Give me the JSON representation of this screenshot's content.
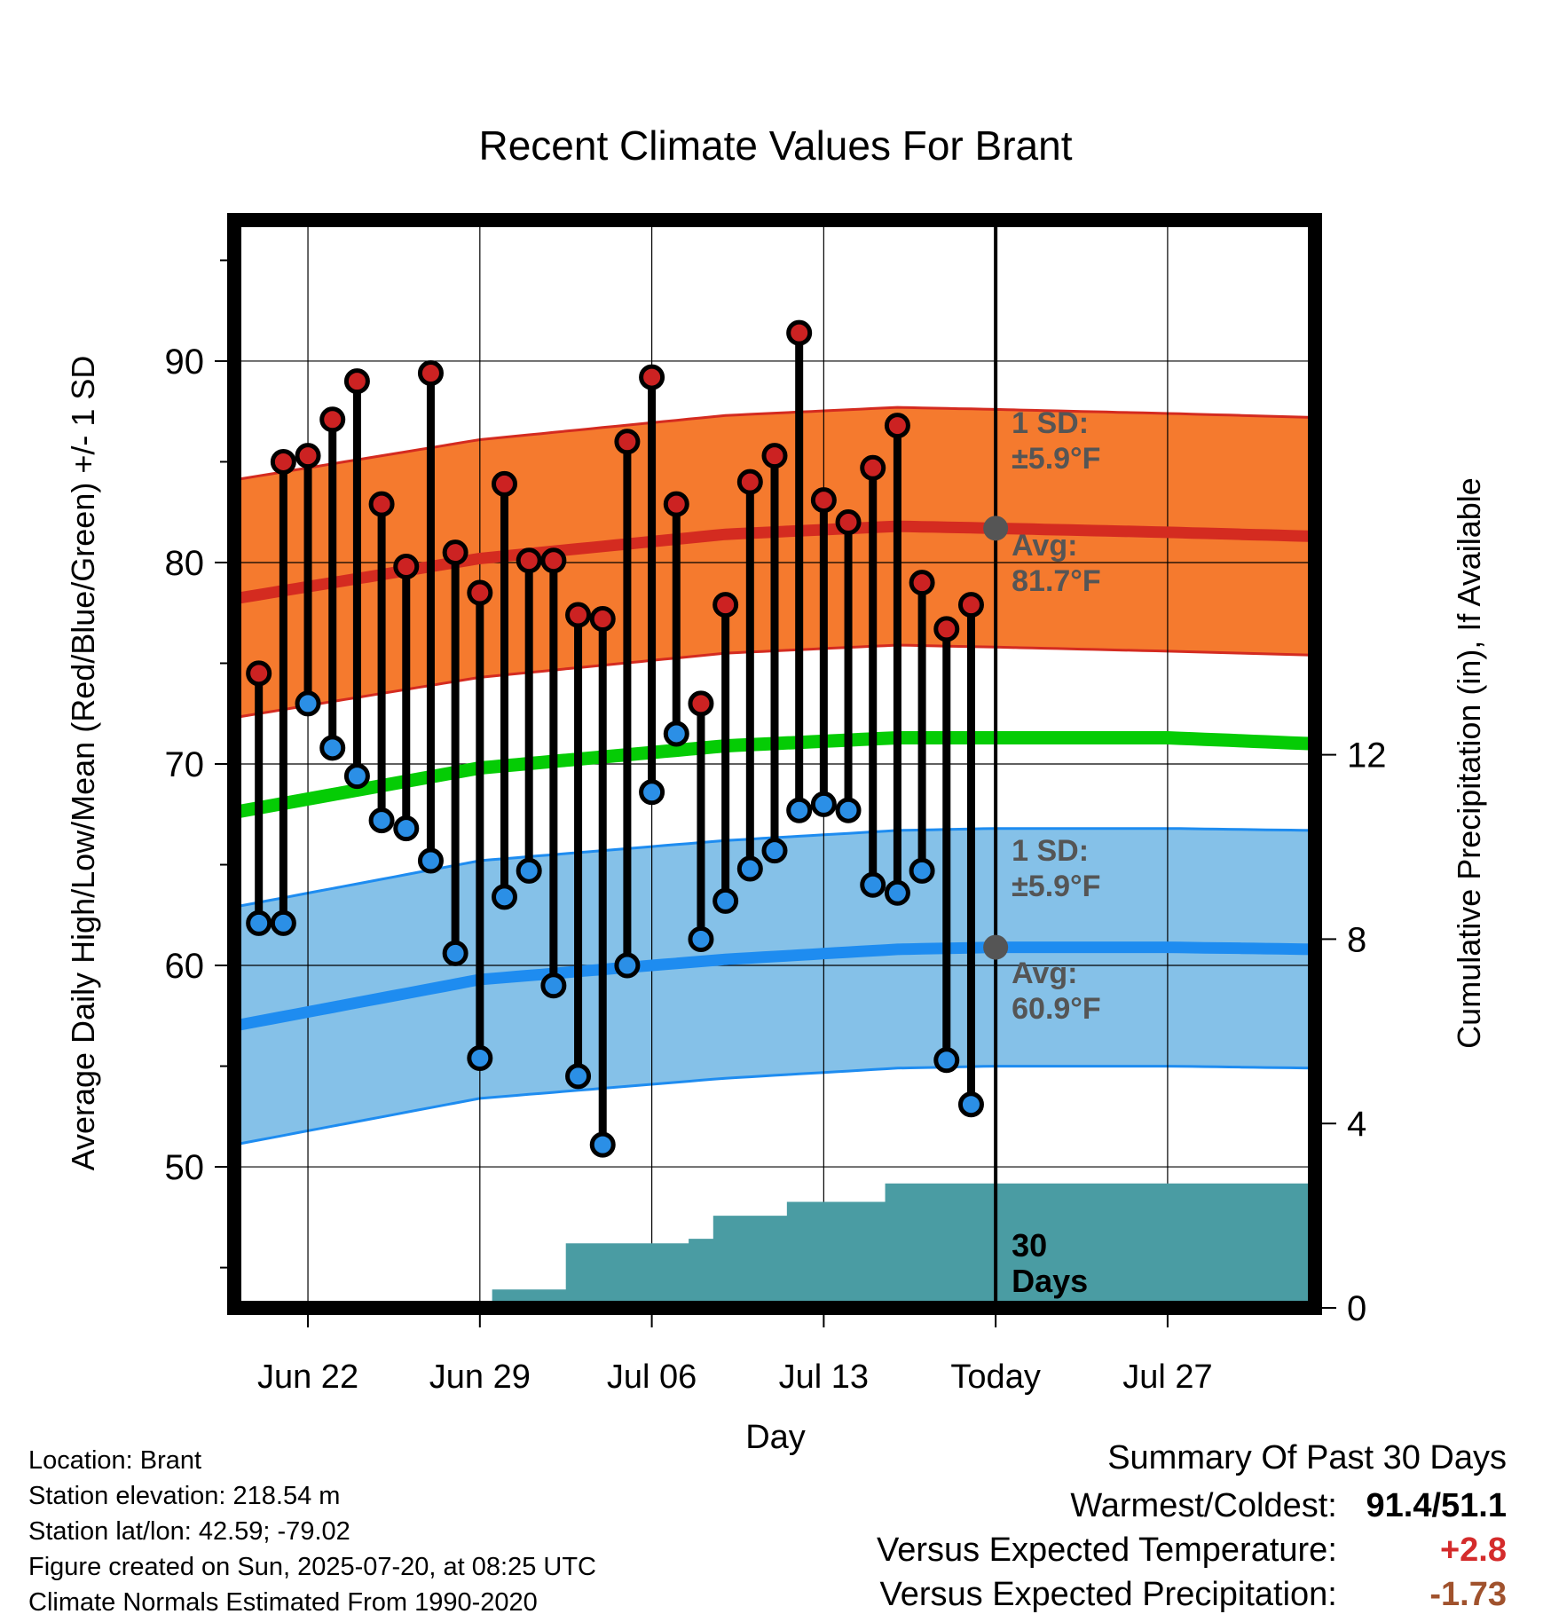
{
  "chart_data": {
    "type": "line",
    "title": "Recent Climate Values For Brant",
    "xlabel": "Day",
    "ylabel": "Average Daily High/Low/Mean (Red/Blue/Green) +/- 1 SD",
    "y2label": "Cumulative Precipitation (in), If Available",
    "ylim": [
      43,
      97
    ],
    "y2lim": [
      0,
      23.6
    ],
    "yticks": [
      50,
      60,
      70,
      80,
      90
    ],
    "y2ticks": [
      0,
      4,
      8,
      12
    ],
    "x_day_range": [
      0,
      44
    ],
    "x_ticks": [
      {
        "day": 3,
        "label": "Jun 22"
      },
      {
        "day": 10,
        "label": "Jun 29"
      },
      {
        "day": 17,
        "label": "Jul 06"
      },
      {
        "day": 24,
        "label": "Jul 13"
      },
      {
        "day": 31,
        "label": "Today"
      },
      {
        "day": 38,
        "label": "Jul 27"
      }
    ],
    "today_day": 31,
    "dates": [
      "Jun 20",
      "Jun 21",
      "Jun 22",
      "Jun 23",
      "Jun 24",
      "Jun 25",
      "Jun 26",
      "Jun 27",
      "Jun 28",
      "Jun 29",
      "Jun 30",
      "Jul 01",
      "Jul 02",
      "Jul 03",
      "Jul 04",
      "Jul 05",
      "Jul 06",
      "Jul 07",
      "Jul 08",
      "Jul 09",
      "Jul 10",
      "Jul 11",
      "Jul 12",
      "Jul 13",
      "Jul 14",
      "Jul 15",
      "Jul 16",
      "Jul 17",
      "Jul 18",
      "Jul 19"
    ],
    "highs": [
      74.5,
      85.0,
      85.3,
      87.1,
      89.0,
      82.9,
      79.8,
      89.4,
      80.5,
      78.5,
      83.9,
      80.1,
      80.1,
      77.4,
      77.2,
      86.0,
      89.2,
      82.9,
      73.0,
      77.9,
      84.0,
      85.3,
      91.4,
      83.1,
      82.0,
      84.7,
      86.8,
      79.0,
      76.7,
      77.9
    ],
    "lows": [
      62.1,
      62.1,
      73.0,
      70.8,
      69.4,
      67.2,
      66.8,
      65.2,
      60.6,
      55.4,
      63.4,
      64.7,
      59.0,
      54.5,
      51.1,
      60.0,
      68.6,
      71.5,
      61.3,
      63.2,
      64.8,
      65.7,
      67.7,
      68.0,
      67.7,
      64.0,
      63.6,
      64.7,
      55.3,
      53.1
    ],
    "normals": {
      "high_avg": [
        [
          0,
          78.2
        ],
        [
          10,
          80.2
        ],
        [
          20,
          81.4
        ],
        [
          27,
          81.8
        ],
        [
          31,
          81.7
        ],
        [
          38,
          81.5
        ],
        [
          44,
          81.3
        ]
      ],
      "low_avg": [
        [
          0,
          57.0
        ],
        [
          10,
          59.3
        ],
        [
          20,
          60.3
        ],
        [
          27,
          60.8
        ],
        [
          31,
          60.9
        ],
        [
          38,
          60.9
        ],
        [
          44,
          60.8
        ]
      ],
      "mean": [
        [
          0,
          67.6
        ],
        [
          10,
          69.8
        ],
        [
          20,
          70.9
        ],
        [
          27,
          71.3
        ],
        [
          31,
          71.3
        ],
        [
          38,
          71.3
        ],
        [
          44,
          71.0
        ]
      ],
      "sd": 5.9
    },
    "precip_cumulative": [
      0,
      0,
      0,
      0,
      0,
      0,
      0,
      0,
      0,
      0,
      0.4,
      0.4,
      0.4,
      1.4,
      1.4,
      1.4,
      1.4,
      1.4,
      1.5,
      2.0,
      2.0,
      2.0,
      2.3,
      2.3,
      2.3,
      2.3,
      2.7,
      2.7,
      2.7,
      2.7
    ],
    "annotations": {
      "high_sd": [
        "1 SD:",
        "±5.9°F"
      ],
      "high_avg": [
        "Avg:",
        "81.7°F"
      ],
      "low_sd": [
        "1 SD:",
        "±5.9°F"
      ],
      "low_avg": [
        "Avg:",
        "60.9°F"
      ],
      "days": [
        "30",
        "Days"
      ]
    },
    "colors": {
      "high_band": "#f57a2e",
      "high_line": "#d42b20",
      "low_band": "#85c1e8",
      "low_line": "#1e8cf0",
      "mean_line": "#05cc05",
      "precip": "#4a9ca3",
      "high_marker": "#cc2222",
      "low_marker": "#2b8fe6",
      "annotation": "#555555"
    }
  },
  "footer": {
    "lines": [
      "Location: Brant",
      "Station elevation: 218.54 m",
      "Station lat/lon: 42.59; -79.02",
      "Figure created on Sun, 2025-07-20, at 08:25 UTC",
      "Climate Normals Estimated From 1990-2020"
    ]
  },
  "summary": {
    "title": "Summary Of Past 30 Days",
    "rows": [
      {
        "label": "Warmest/Coldest:",
        "value": "91.4/51.1",
        "color": "#000000"
      },
      {
        "label": "Versus Expected Temperature:",
        "value": "+2.8",
        "color": "#d42b2b"
      },
      {
        "label": "Versus Expected Precipitation:",
        "value": "-1.73",
        "color": "#a0522d"
      }
    ]
  }
}
